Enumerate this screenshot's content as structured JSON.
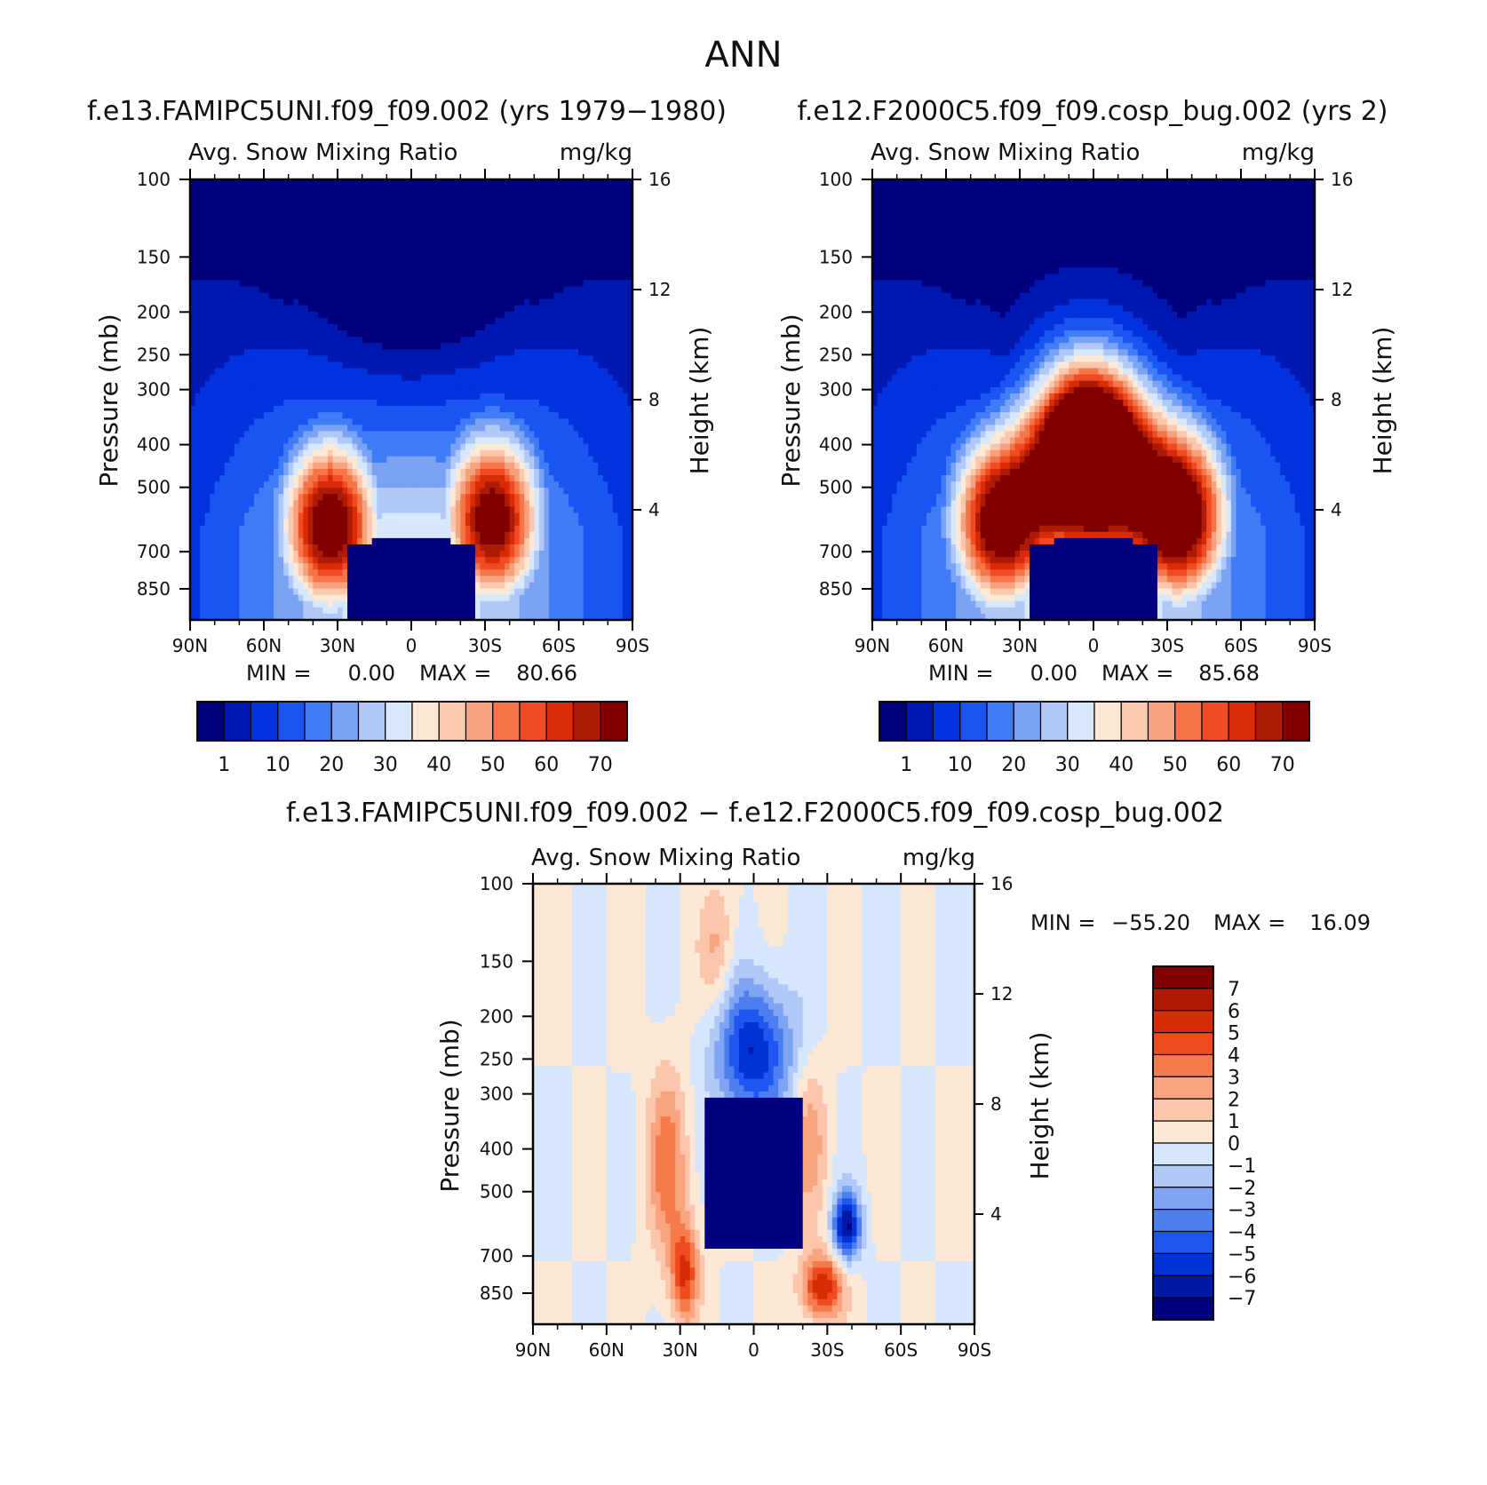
{
  "figure_title": "ANN",
  "palettes": {
    "abs": [
      "#00007f",
      "#0018b0",
      "#0033dd",
      "#1a55f2",
      "#3f7cf5",
      "#7ba3f5",
      "#b0c9f7",
      "#d7e7fc",
      "#fde9d6",
      "#fbc7ad",
      "#f7a27e",
      "#f47648",
      "#f04b22",
      "#d82b06",
      "#ad1a05",
      "#800000"
    ],
    "diff": [
      "#800000",
      "#b01a05",
      "#d42d05",
      "#ef4b1e",
      "#f57a4c",
      "#f9a47e",
      "#fbc6ab",
      "#fde8d6",
      "#d6e6fc",
      "#b1c9f7",
      "#7ea4f3",
      "#4c7ef0",
      "#1f56f0",
      "#0033d4",
      "#0018a6",
      "#00007f"
    ]
  },
  "chart_data": [
    {
      "type": "heatmap",
      "panel_title": "f.e13.FAMIPC5UNI.f09_f09.002 (yrs 1979−1980)",
      "field_label": "Avg. Snow Mixing Ratio",
      "units": "mg/kg",
      "ylabel": "Pressure (mb)",
      "y2label": "Height (km)",
      "x_ticks": [
        "90N",
        "60N",
        "30N",
        "0",
        "30S",
        "60S",
        "90S"
      ],
      "y_ticks": [
        "100",
        "150",
        "200",
        "250",
        "300",
        "400",
        "500",
        "700",
        "850"
      ],
      "y2_ticks": [
        "16",
        "12",
        "8",
        "4"
      ],
      "min_label": "MIN =",
      "min_value": "0.00",
      "max_label": "MAX =",
      "max_value": "80.66",
      "colorbar_labels": [
        "1",
        "10",
        "20",
        "30",
        "40",
        "50",
        "60",
        "70"
      ],
      "levels": [
        1,
        5,
        10,
        15,
        20,
        25,
        30,
        35,
        40,
        45,
        50,
        55,
        60,
        65,
        70
      ],
      "lobes": [
        {
          "lat": 33,
          "p": 610,
          "peak": 80.66
        },
        {
          "lat": -33,
          "p": 590,
          "peak": 78
        }
      ]
    },
    {
      "type": "heatmap",
      "panel_title": "f.e12.F2000C5.f09_f09.cosp_bug.002 (yrs 2)",
      "field_label": "Avg. Snow Mixing Ratio",
      "units": "mg/kg",
      "ylabel": "Pressure (mb)",
      "y2label": "Height (km)",
      "x_ticks": [
        "90N",
        "60N",
        "30N",
        "0",
        "30S",
        "60S",
        "90S"
      ],
      "y_ticks": [
        "100",
        "150",
        "200",
        "250",
        "300",
        "400",
        "500",
        "700",
        "850"
      ],
      "y2_ticks": [
        "16",
        "12",
        "8",
        "4"
      ],
      "min_label": "MIN =",
      "min_value": "0.00",
      "max_label": "MAX =",
      "max_value": "85.68",
      "colorbar_labels": [
        "1",
        "10",
        "20",
        "30",
        "40",
        "50",
        "60",
        "70"
      ],
      "levels": [
        1,
        5,
        10,
        15,
        20,
        25,
        30,
        35,
        40,
        45,
        50,
        55,
        60,
        65,
        70
      ],
      "lobes": [
        {
          "lat": 38,
          "p": 600,
          "peak": 80
        },
        {
          "lat": -35,
          "p": 580,
          "peak": 85.68
        },
        {
          "lat": 8,
          "p": 420,
          "peak": 78
        },
        {
          "lat": -6,
          "p": 430,
          "peak": 72
        }
      ]
    },
    {
      "type": "heatmap",
      "panel_title": "f.e13.FAMIPC5UNI.f09_f09.002 − f.e12.F2000C5.f09_f09.cosp_bug.002",
      "field_label": "Avg. Snow Mixing Ratio",
      "units": "mg/kg",
      "ylabel": "Pressure (mb)",
      "y2label": "Height (km)",
      "x_ticks": [
        "90N",
        "60N",
        "30N",
        "0",
        "30S",
        "60S",
        "90S"
      ],
      "y_ticks": [
        "100",
        "150",
        "200",
        "250",
        "300",
        "400",
        "500",
        "700",
        "850"
      ],
      "y2_ticks": [
        "16",
        "12",
        "8",
        "4"
      ],
      "min_label": "MIN =",
      "min_value": "−55.20",
      "max_label": "MAX =",
      "max_value": "16.09",
      "colorbar_labels": [
        "7",
        "6",
        "5",
        "4",
        "3",
        "2",
        "1",
        "0",
        "−1",
        "−2",
        "−3",
        "−4",
        "−5",
        "−6",
        "−7"
      ],
      "levels": [
        -7,
        -6,
        -5,
        -4,
        -3,
        -2,
        -1,
        0,
        1,
        2,
        3,
        4,
        5,
        6,
        7
      ],
      "min": -55.2,
      "max": 16.09
    }
  ]
}
